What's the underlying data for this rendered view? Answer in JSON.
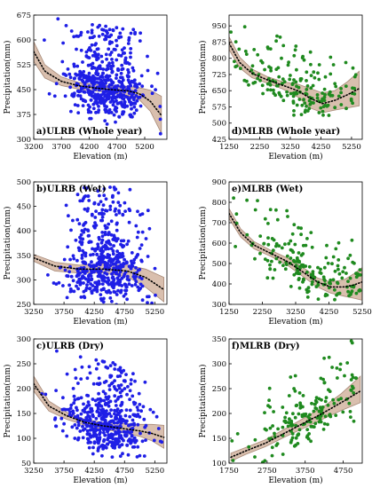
{
  "colors": {
    "ulrb": "#1f1fe6",
    "mlrb": "#1f8a1f",
    "band": "#d9bfae",
    "band_edge": "#a88a78",
    "trend": "#000000"
  },
  "chart_data": [
    {
      "id": "a",
      "type": "scatter",
      "title": "a)ULRB (Whole year)",
      "xlabel": "Elevation (m)",
      "ylabel": "Precipitation(mm)",
      "xlim": [
        3200,
        5600
      ],
      "ylim": [
        300,
        675
      ],
      "xticks": [
        3200,
        3700,
        4200,
        4700,
        5200
      ],
      "yticks": [
        300,
        375,
        450,
        525,
        600,
        675
      ],
      "series_color": "ulrb",
      "trend": {
        "x": [
          3200,
          3400,
          3700,
          4000,
          4300,
          4600,
          4900,
          5100,
          5300,
          5500
        ],
        "y": [
          565,
          505,
          475,
          462,
          455,
          450,
          446,
          438,
          415,
          372
        ]
      },
      "band_lower": [
        535,
        485,
        462,
        452,
        446,
        440,
        432,
        420,
        385,
        318
      ],
      "band_upper": [
        595,
        525,
        488,
        472,
        465,
        462,
        460,
        456,
        448,
        430
      ],
      "points": {
        "n": 520,
        "seed": 11,
        "x_range": [
          3300,
          5500
        ],
        "x_mean": 4500,
        "x_sd": 350,
        "spread": [
          -80,
          190
        ]
      }
    },
    {
      "id": "d",
      "type": "scatter",
      "title": "d)MLRB (Whole year)",
      "xlabel": "Elevation (m)",
      "ylabel": "Precipitation(mm)",
      "xlim": [
        1250,
        5600
      ],
      "ylim": [
        425,
        1000
      ],
      "xticks": [
        1250,
        2250,
        3250,
        4250,
        5250
      ],
      "yticks": [
        425,
        500,
        575,
        650,
        725,
        800,
        875,
        950
      ],
      "series_color": "mlrb",
      "trend": {
        "x": [
          1250,
          1600,
          2000,
          2500,
          3000,
          3500,
          3900,
          4300,
          4700,
          5100,
          5500
        ],
        "y": [
          870,
          780,
          730,
          700,
          675,
          650,
          615,
          590,
          605,
          630,
          660
        ]
      },
      "band_lower": [
        840,
        755,
        710,
        685,
        658,
        620,
        570,
        548,
        560,
        570,
        580
      ],
      "band_upper": [
        900,
        805,
        750,
        715,
        692,
        680,
        660,
        640,
        650,
        690,
        740
      ],
      "points": {
        "n": 180,
        "seed": 23,
        "x_range": [
          1300,
          5400
        ],
        "x_mean": 3400,
        "x_sd": 1100,
        "spread": [
          -80,
          220
        ]
      }
    },
    {
      "id": "b",
      "type": "scatter",
      "title": "b)ULRB (Wet)",
      "xlabel": "Elevation (m)",
      "ylabel": "Precipitation(mm)",
      "xlim": [
        3250,
        5450
      ],
      "ylim": [
        250,
        500
      ],
      "xticks": [
        3250,
        3750,
        4250,
        4750,
        5250
      ],
      "yticks": [
        250,
        300,
        350,
        400,
        450,
        500
      ],
      "series_color": "ulrb",
      "trend": {
        "x": [
          3250,
          3600,
          4000,
          4400,
          4800,
          5100,
          5400
        ],
        "y": [
          345,
          328,
          322,
          322,
          318,
          305,
          280
        ]
      },
      "band_lower": [
        338,
        318,
        314,
        314,
        306,
        285,
        255
      ],
      "band_upper": [
        352,
        336,
        330,
        332,
        330,
        322,
        305
      ],
      "points": {
        "n": 520,
        "seed": 37,
        "x_range": [
          3300,
          5400
        ],
        "x_mean": 4450,
        "x_sd": 330,
        "spread": [
          -50,
          170
        ]
      }
    },
    {
      "id": "e",
      "type": "scatter",
      "title": "e)MLRB (Wet)",
      "xlabel": "Elevation (m)",
      "ylabel": "Precipitation(mm)",
      "xlim": [
        1250,
        5250
      ],
      "ylim": [
        300,
        900
      ],
      "xticks": [
        1250,
        2250,
        3250,
        4250,
        5250
      ],
      "yticks": [
        300,
        400,
        500,
        600,
        700,
        800,
        900
      ],
      "series_color": "mlrb",
      "trend": {
        "x": [
          1250,
          1600,
          2000,
          2500,
          3000,
          3500,
          3900,
          4300,
          4700,
          5000,
          5250
        ],
        "y": [
          745,
          650,
          590,
          550,
          510,
          455,
          410,
          385,
          385,
          395,
          410
        ]
      },
      "band_lower": [
        720,
        630,
        572,
        535,
        492,
        432,
        385,
        355,
        340,
        330,
        320
      ],
      "band_upper": [
        770,
        670,
        608,
        565,
        528,
        478,
        430,
        410,
        420,
        450,
        480
      ],
      "points": {
        "n": 190,
        "seed": 51,
        "x_range": [
          1300,
          5200
        ],
        "x_mean": 3600,
        "x_sd": 1000,
        "spread": [
          -60,
          250
        ]
      }
    },
    {
      "id": "c",
      "type": "scatter",
      "title": "c)ULRB (Dry)",
      "xlabel": "Elevation (m)",
      "ylabel": "Precipitation(mm)",
      "xlim": [
        3250,
        5450
      ],
      "ylim": [
        50,
        300
      ],
      "xticks": [
        3250,
        3750,
        4250,
        4750,
        5250
      ],
      "yticks": [
        50,
        100,
        150,
        200,
        250,
        300
      ],
      "series_color": "ulrb",
      "trend": {
        "x": [
          3250,
          3500,
          3800,
          4100,
          4400,
          4700,
          5000,
          5200,
          5400
        ],
        "y": [
          210,
          165,
          145,
          132,
          125,
          120,
          115,
          110,
          102
        ]
      },
      "band_lower": [
        195,
        155,
        138,
        126,
        118,
        112,
        104,
        95,
        80
      ],
      "band_upper": [
        225,
        175,
        152,
        138,
        132,
        130,
        128,
        128,
        126
      ],
      "points": {
        "n": 500,
        "seed": 73,
        "x_range": [
          3300,
          5400
        ],
        "x_mean": 4450,
        "x_sd": 330,
        "spread": [
          -45,
          130
        ]
      }
    },
    {
      "id": "f",
      "type": "scatter",
      "title": "f)MLRB (Dry)",
      "xlabel": "Elevation (m)",
      "ylabel": "Precipitation(mm)",
      "xlim": [
        1750,
        5250
      ],
      "ylim": [
        100,
        350
      ],
      "xticks": [
        1750,
        2750,
        3750,
        4750
      ],
      "yticks": [
        100,
        150,
        200,
        250,
        300,
        350
      ],
      "series_color": "mlrb",
      "trend": {
        "x": [
          1800,
          2200,
          2700,
          3200,
          3700,
          4200,
          4700,
          5200
        ],
        "y": [
          112,
          125,
          140,
          160,
          180,
          200,
          222,
          245
        ]
      },
      "band_lower": [
        104,
        118,
        133,
        152,
        170,
        188,
        206,
        222
      ],
      "band_upper": [
        120,
        132,
        147,
        168,
        190,
        212,
        240,
        275
      ],
      "points": {
        "n": 170,
        "seed": 97,
        "x_range": [
          1800,
          5100
        ],
        "x_mean": 3700,
        "x_sd": 900,
        "spread": [
          -40,
          120
        ]
      }
    }
  ]
}
